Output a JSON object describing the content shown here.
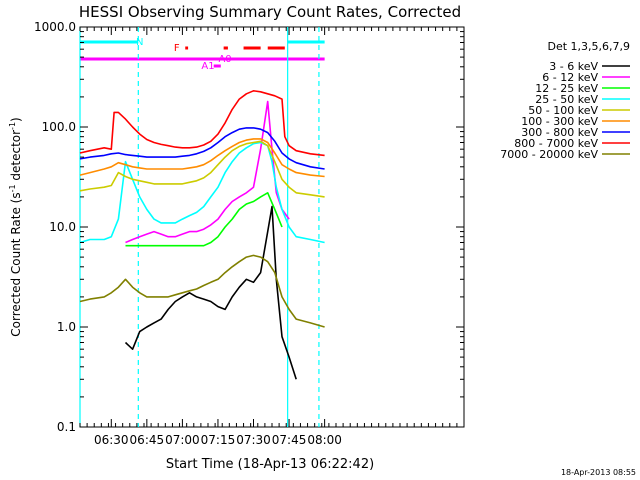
{
  "chart_data": {
    "type": "line",
    "title": "HESSI Observing Summary Count Rates, Corrected",
    "xlabel": "Start Time (18-Apr-13 06:22:42)",
    "ylabel_main": "Corrected Count Rate (s",
    "ylabel_sup1": "-1",
    "ylabel_mid": " detector",
    "ylabel_sup2": "-1",
    "ylabel_end": ")",
    "y_scale": "log",
    "ylim": [
      0.1,
      1000
    ],
    "xlim_minutes": [
      6.28,
      8.98
    ],
    "x_ticks": [
      {
        "label": "06:30",
        "min": 6.5
      },
      {
        "label": "06:45",
        "min": 6.75
      },
      {
        "label": "07:00",
        "min": 7.0
      },
      {
        "label": "07:15",
        "min": 7.25
      },
      {
        "label": "07:30",
        "min": 7.5
      },
      {
        "label": "07:45",
        "min": 7.75
      },
      {
        "label": "08:00",
        "min": 8.0
      }
    ],
    "y_ticks": [
      {
        "label": "0.1",
        "value": 0.1
      },
      {
        "label": "1.0",
        "value": 1
      },
      {
        "label": "10.0",
        "value": 10
      },
      {
        "label": "100.0",
        "value": 100
      },
      {
        "label": "1000.0",
        "value": 1000
      }
    ],
    "footer": "18-Apr-2013 08:55",
    "legend_header": "Det 1,3,5,6,7,9",
    "legend_placement": "right",
    "series": [
      {
        "name": "3 - 6 keV",
        "color": "#000000",
        "x": [
          6.38,
          6.42,
          6.46,
          6.5,
          6.55,
          6.6,
          6.65,
          6.7,
          6.75,
          6.8,
          6.85,
          6.9,
          6.95,
          7.0,
          7.05,
          7.1,
          7.15,
          7.2,
          7.25,
          7.3,
          7.35,
          7.4,
          7.45,
          7.5,
          7.55,
          7.6,
          7.63,
          7.66,
          7.7,
          7.75,
          7.8
        ],
        "y": [
          null,
          null,
          null,
          null,
          null,
          0.7,
          0.6,
          0.9,
          1.0,
          1.1,
          1.2,
          1.5,
          1.8,
          2.0,
          2.2,
          2.0,
          1.9,
          1.8,
          1.6,
          1.5,
          2.0,
          2.5,
          3.0,
          2.8,
          3.5,
          9.0,
          16.0,
          3.0,
          0.8,
          0.5,
          0.3
        ]
      },
      {
        "name": "6 - 12 keV",
        "color": "#ff00ff",
        "x": [
          6.28,
          6.35,
          6.4,
          6.45,
          6.5,
          6.55,
          6.6,
          6.65,
          6.7,
          6.75,
          6.8,
          6.85,
          6.9,
          6.95,
          7.0,
          7.05,
          7.1,
          7.15,
          7.2,
          7.25,
          7.3,
          7.35,
          7.4,
          7.45,
          7.5,
          7.55,
          7.6,
          7.63,
          7.66,
          7.7,
          7.75
        ],
        "y": [
          null,
          null,
          null,
          null,
          null,
          null,
          7.0,
          7.5,
          8.0,
          8.5,
          9.0,
          8.5,
          8.0,
          8.0,
          8.5,
          9.0,
          9.0,
          9.5,
          10.5,
          12,
          15,
          18,
          20,
          22,
          25,
          60,
          180,
          60,
          22,
          15,
          12
        ]
      },
      {
        "name": "12 - 25 keV",
        "color": "#00ff00",
        "x": [
          6.6,
          6.65,
          6.7,
          6.75,
          6.8,
          6.85,
          6.9,
          6.95,
          7.0,
          7.05,
          7.1,
          7.15,
          7.2,
          7.25,
          7.3,
          7.35,
          7.4,
          7.45,
          7.5,
          7.55,
          7.6,
          7.65,
          7.7
        ],
        "y": [
          6.5,
          6.5,
          6.5,
          6.5,
          6.5,
          6.5,
          6.5,
          6.5,
          6.5,
          6.5,
          6.5,
          6.5,
          7.0,
          8.0,
          10,
          12,
          15,
          17,
          18,
          20,
          22,
          15,
          10
        ]
      },
      {
        "name": "25 - 50 keV",
        "color": "#00ffff",
        "x": [
          6.28,
          6.35,
          6.45,
          6.5,
          6.55,
          6.6,
          6.65,
          6.7,
          6.75,
          6.8,
          6.85,
          6.9,
          6.95,
          7.0,
          7.05,
          7.1,
          7.15,
          7.2,
          7.25,
          7.3,
          7.35,
          7.4,
          7.45,
          7.5,
          7.55,
          7.6,
          7.63,
          7.66,
          7.7,
          7.75,
          7.8,
          7.9,
          8.0
        ],
        "y": [
          7.0,
          7.5,
          7.5,
          8.0,
          12,
          45,
          30,
          20,
          15,
          12,
          11,
          11,
          11,
          12,
          13,
          14,
          16,
          20,
          25,
          35,
          45,
          55,
          62,
          68,
          70,
          65,
          45,
          25,
          15,
          10,
          8.0,
          7.5,
          7.0
        ]
      },
      {
        "name": "50 - 100 keV",
        "color": "#cccc00",
        "x": [
          6.28,
          6.35,
          6.45,
          6.5,
          6.55,
          6.6,
          6.65,
          6.7,
          6.75,
          6.8,
          6.85,
          6.9,
          6.95,
          7.0,
          7.05,
          7.1,
          7.15,
          7.2,
          7.25,
          7.3,
          7.35,
          7.4,
          7.45,
          7.5,
          7.55,
          7.6,
          7.65,
          7.7,
          7.75,
          7.8,
          7.9,
          8.0
        ],
        "y": [
          23,
          24,
          25,
          26,
          35,
          32,
          30,
          29,
          28,
          27,
          27,
          27,
          27,
          27,
          28,
          29,
          31,
          35,
          42,
          50,
          58,
          64,
          68,
          70,
          72,
          65,
          45,
          30,
          25,
          22,
          21,
          20
        ]
      },
      {
        "name": "100 - 300 keV",
        "color": "#ff8c00",
        "x": [
          6.28,
          6.35,
          6.45,
          6.5,
          6.55,
          6.6,
          6.65,
          6.7,
          6.75,
          6.8,
          6.85,
          6.9,
          6.95,
          7.0,
          7.05,
          7.1,
          7.15,
          7.2,
          7.25,
          7.3,
          7.35,
          7.4,
          7.45,
          7.5,
          7.55,
          7.6,
          7.65,
          7.7,
          7.75,
          7.8,
          7.9,
          8.0
        ],
        "y": [
          33,
          35,
          38,
          40,
          44,
          42,
          40,
          39,
          38,
          38,
          38,
          38,
          38,
          38,
          39,
          40,
          42,
          46,
          52,
          58,
          64,
          70,
          74,
          76,
          76,
          70,
          55,
          42,
          38,
          35,
          33,
          32
        ]
      },
      {
        "name": "300 - 800 keV",
        "color": "#0000ff",
        "x": [
          6.28,
          6.35,
          6.45,
          6.5,
          6.55,
          6.6,
          6.65,
          6.7,
          6.75,
          6.8,
          6.85,
          6.9,
          6.95,
          7.0,
          7.05,
          7.1,
          7.15,
          7.2,
          7.25,
          7.3,
          7.35,
          7.4,
          7.45,
          7.5,
          7.55,
          7.6,
          7.65,
          7.7,
          7.75,
          7.8,
          7.9,
          8.0
        ],
        "y": [
          48,
          50,
          52,
          54,
          55,
          53,
          52,
          51,
          50,
          50,
          50,
          50,
          50,
          51,
          52,
          54,
          57,
          62,
          70,
          80,
          88,
          95,
          98,
          98,
          95,
          88,
          72,
          55,
          48,
          44,
          40,
          38
        ]
      },
      {
        "name": "800 - 7000 keV",
        "color": "#ff0000",
        "x": [
          6.28,
          6.35,
          6.45,
          6.5,
          6.52,
          6.55,
          6.6,
          6.65,
          6.7,
          6.75,
          6.8,
          6.85,
          6.9,
          6.95,
          7.0,
          7.05,
          7.1,
          7.15,
          7.2,
          7.25,
          7.3,
          7.35,
          7.4,
          7.45,
          7.5,
          7.55,
          7.6,
          7.65,
          7.7,
          7.72,
          7.75,
          7.8,
          7.9,
          8.0
        ],
        "y": [
          55,
          58,
          62,
          60,
          140,
          140,
          120,
          100,
          85,
          75,
          70,
          67,
          65,
          63,
          62,
          62,
          63,
          66,
          72,
          85,
          110,
          150,
          190,
          215,
          230,
          225,
          215,
          205,
          190,
          80,
          65,
          58,
          54,
          52
        ]
      },
      {
        "name": "7000 - 20000 keV",
        "color": "#808000",
        "x": [
          6.28,
          6.35,
          6.45,
          6.5,
          6.55,
          6.6,
          6.65,
          6.7,
          6.75,
          6.8,
          6.85,
          6.9,
          6.95,
          7.0,
          7.05,
          7.1,
          7.15,
          7.2,
          7.25,
          7.3,
          7.35,
          7.4,
          7.45,
          7.5,
          7.55,
          7.6,
          7.65,
          7.7,
          7.75,
          7.8,
          7.9,
          8.0
        ],
        "y": [
          1.8,
          1.9,
          2.0,
          2.2,
          2.5,
          3.0,
          2.5,
          2.2,
          2.0,
          2.0,
          2.0,
          2.0,
          2.1,
          2.2,
          2.3,
          2.4,
          2.6,
          2.8,
          3.0,
          3.5,
          4.0,
          4.5,
          5.0,
          5.2,
          5.0,
          4.5,
          3.5,
          2.0,
          1.5,
          1.2,
          1.1,
          1.0
        ]
      }
    ],
    "flags": [
      {
        "label": "N",
        "color": "#00ffff",
        "x_start": 6.28,
        "x_end": 6.69,
        "label_at": 6.7
      },
      {
        "label": "N",
        "color": "#00ffff",
        "x_start": 7.74,
        "x_end": 8.0,
        "label_at": null
      },
      {
        "label": "F",
        "color": "#ff0000",
        "x_start": 7.02,
        "x_end": 7.04,
        "label_at": 6.96
      },
      {
        "label": "",
        "color": "#ff0000",
        "x_start": 7.29,
        "x_end": 7.32,
        "label_at": null
      },
      {
        "label": "",
        "color": "#ff0000",
        "x_start": 7.43,
        "x_end": 7.55,
        "label_at": null
      },
      {
        "label": "",
        "color": "#ff0000",
        "x_start": 7.6,
        "x_end": 7.72,
        "label_at": null
      },
      {
        "label": "",
        "color": "#ff00ff",
        "x_start": 6.28,
        "x_end": 8.0,
        "label_at": null
      },
      {
        "label": "A0",
        "color": "#ff00ff",
        "x_start": null,
        "x_end": null,
        "label_at": 7.3
      },
      {
        "label": "A1",
        "color": "#ff00ff",
        "x_start": 7.22,
        "x_end": 7.27,
        "label_at": 7.18
      }
    ],
    "vlines": [
      {
        "x": 6.28,
        "color": "#00ffff",
        "style": "solid"
      },
      {
        "x": 6.69,
        "color": "#00ffff",
        "style": "dashed"
      },
      {
        "x": 7.74,
        "color": "#00ffff",
        "style": "solid"
      },
      {
        "x": 7.96,
        "color": "#00ffff",
        "style": "dashed"
      }
    ]
  }
}
